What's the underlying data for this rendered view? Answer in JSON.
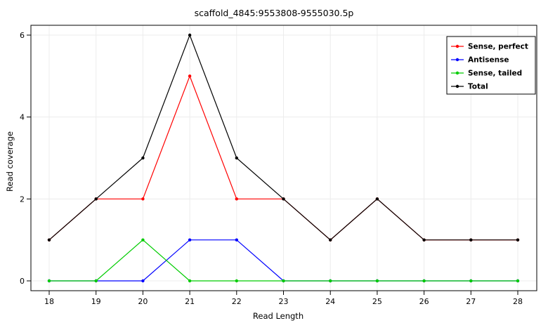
{
  "chart_data": {
    "type": "line",
    "title": "scaffold_4845:9553808-9555030.5p",
    "xlabel": "Read Length",
    "ylabel": "Read coverage",
    "x": [
      18,
      19,
      20,
      21,
      22,
      23,
      24,
      25,
      26,
      27,
      28
    ],
    "xticks": [
      18,
      19,
      20,
      21,
      22,
      23,
      24,
      25,
      26,
      27,
      28
    ],
    "yticks": [
      0,
      2,
      4,
      6
    ],
    "xlim": [
      18,
      28
    ],
    "ylim": [
      0,
      6
    ],
    "grid": true,
    "legend_position": "top-right",
    "series": [
      {
        "name": "Sense, perfect",
        "color": "#ff0000",
        "values": [
          1,
          2,
          2,
          5,
          2,
          2,
          1,
          2,
          1,
          1,
          1
        ]
      },
      {
        "name": "Antisense",
        "color": "#0000ff",
        "values": [
          0,
          0,
          0,
          1,
          1,
          0,
          0,
          0,
          0,
          0,
          0
        ]
      },
      {
        "name": "Sense, tailed",
        "color": "#00cc00",
        "values": [
          0,
          0,
          1,
          0,
          0,
          0,
          0,
          0,
          0,
          0,
          0
        ]
      },
      {
        "name": "Total",
        "color": "#000000",
        "values": [
          1,
          2,
          3,
          6,
          3,
          2,
          1,
          2,
          1,
          1,
          1
        ]
      }
    ]
  }
}
